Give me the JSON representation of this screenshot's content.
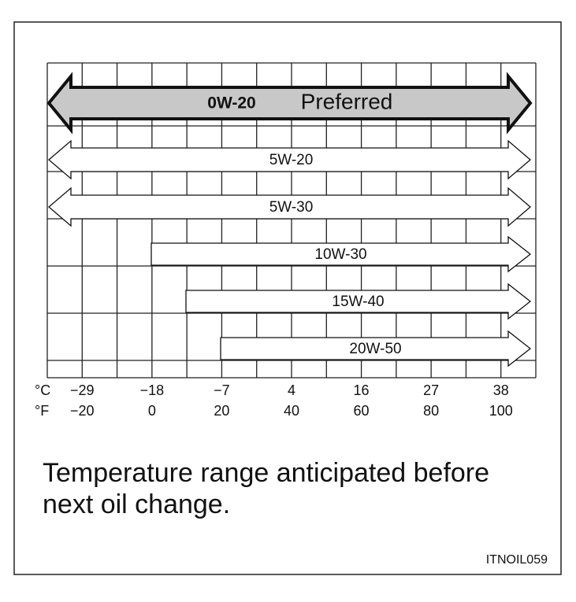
{
  "arrows": [
    {
      "label": "0W-20",
      "note": "Preferred"
    },
    {
      "label": "5W-20"
    },
    {
      "label": "5W-30"
    },
    {
      "label": "10W-30"
    },
    {
      "label": "15W-40"
    },
    {
      "label": "20W-50"
    }
  ],
  "scale": {
    "celsius_unit": "°C",
    "fahrenheit_unit": "°F",
    "celsius": [
      "−29",
      "−18",
      "−7",
      "4",
      "16",
      "27",
      "38"
    ],
    "fahrenheit": [
      "−20",
      "0",
      "20",
      "40",
      "60",
      "80",
      "100"
    ]
  },
  "caption": [
    "Temperature range anticipated before",
    "next oil change."
  ],
  "code": "ITNOIL059"
}
